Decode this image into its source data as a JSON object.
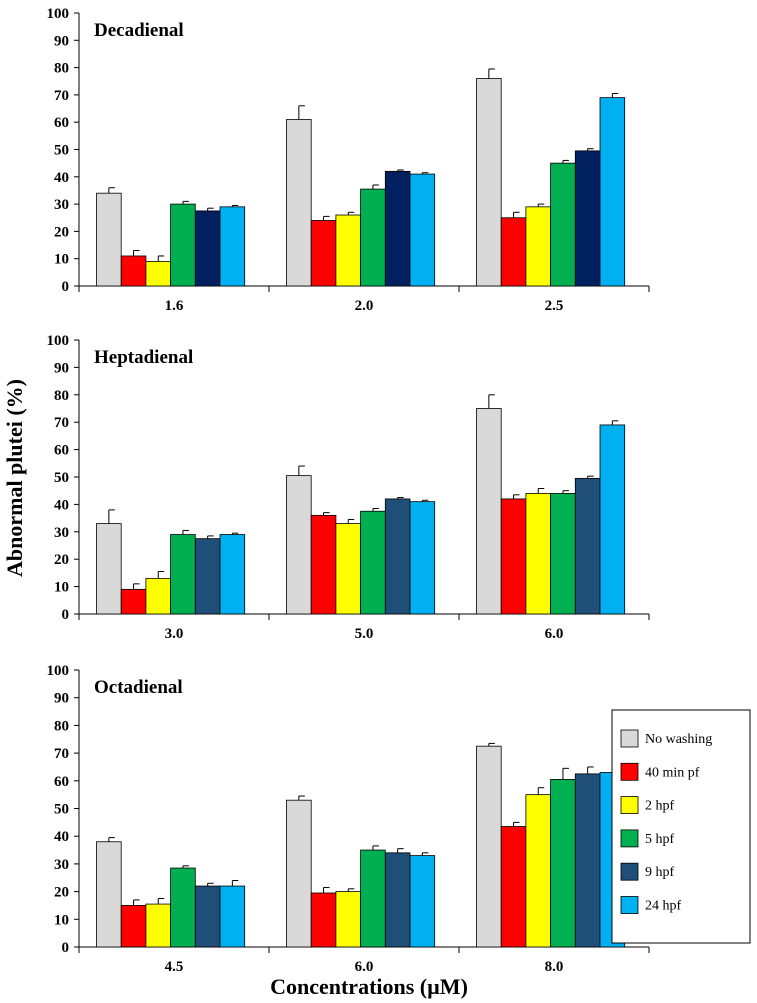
{
  "chart_data": [
    {
      "type": "bar",
      "title": "Decadienal",
      "categories": [
        "1.6",
        "2.0",
        "2.5"
      ],
      "ylim": [
        0,
        100
      ],
      "yticks": [
        0,
        10,
        20,
        30,
        40,
        50,
        60,
        70,
        80,
        90,
        100
      ],
      "series": [
        {
          "name": "No washing",
          "values": [
            34,
            61,
            76
          ],
          "errors": [
            2,
            5,
            3.5
          ]
        },
        {
          "name": "40 min pf",
          "values": [
            11,
            24,
            25
          ],
          "errors": [
            2,
            1.5,
            2
          ]
        },
        {
          "name": "2 hpf",
          "values": [
            9,
            26,
            29
          ],
          "errors": [
            2,
            1,
            1
          ]
        },
        {
          "name": "5 hpf",
          "values": [
            30,
            35.5,
            45
          ],
          "errors": [
            1,
            1.5,
            1
          ]
        },
        {
          "name": "9 hpf",
          "values": [
            27.5,
            42,
            49.5
          ],
          "errors": [
            1,
            0.5,
            0.8
          ]
        },
        {
          "name": "24 hpf",
          "values": [
            29,
            41,
            69
          ],
          "errors": [
            0.5,
            0.5,
            1.5
          ]
        }
      ]
    },
    {
      "type": "bar",
      "title": "Heptadienal",
      "categories": [
        "3.0",
        "5.0",
        "6.0"
      ],
      "ylim": [
        0,
        100
      ],
      "yticks": [
        0,
        10,
        20,
        30,
        40,
        50,
        60,
        70,
        80,
        90,
        100
      ],
      "series": [
        {
          "name": "No washing",
          "values": [
            33,
            50.5,
            75
          ],
          "errors": [
            5,
            3.5,
            5
          ]
        },
        {
          "name": "40 min pf",
          "values": [
            9,
            36,
            42
          ],
          "errors": [
            2,
            1,
            1.5
          ]
        },
        {
          "name": "2 hpf",
          "values": [
            13,
            33,
            44
          ],
          "errors": [
            2.5,
            1.5,
            1.8
          ]
        },
        {
          "name": "5 hpf",
          "values": [
            29,
            37.5,
            44
          ],
          "errors": [
            1.5,
            1,
            1
          ]
        },
        {
          "name": "9 hpf",
          "values": [
            27.5,
            42,
            49.5
          ],
          "errors": [
            1,
            0.5,
            0.8
          ]
        },
        {
          "name": "24 hpf",
          "values": [
            29,
            41,
            69
          ],
          "errors": [
            0.5,
            0.5,
            1.5
          ]
        }
      ]
    },
    {
      "type": "bar",
      "title": "Octadienal",
      "categories": [
        "4.5",
        "6.0",
        "8.0"
      ],
      "ylim": [
        0,
        100
      ],
      "yticks": [
        0,
        10,
        20,
        30,
        40,
        50,
        60,
        70,
        80,
        90,
        100
      ],
      "series": [
        {
          "name": "No washing",
          "values": [
            38,
            53,
            72.5
          ],
          "errors": [
            1.5,
            1.5,
            1
          ]
        },
        {
          "name": "40 min pf",
          "values": [
            15,
            19.5,
            43.5
          ],
          "errors": [
            2,
            2,
            1.5
          ]
        },
        {
          "name": "2 hpf",
          "values": [
            15.5,
            20,
            55
          ],
          "errors": [
            2,
            1,
            2.5
          ]
        },
        {
          "name": "5 hpf",
          "values": [
            28.5,
            35,
            60.5
          ],
          "errors": [
            0.8,
            1.5,
            4
          ]
        },
        {
          "name": "9 hpf",
          "values": [
            22,
            34,
            62.5
          ],
          "errors": [
            1,
            1.5,
            2.5
          ]
        },
        {
          "name": "24 hpf",
          "values": [
            22,
            33,
            63
          ],
          "errors": [
            2,
            1,
            1
          ]
        }
      ]
    }
  ],
  "ylabel": "Abnormal plutei (%)",
  "xlabel": "Concentrations (µM)",
  "legend": {
    "placement": "bottom-right",
    "items": [
      {
        "label": "No washing",
        "color": "#d9d9d9"
      },
      {
        "label": "40 min pf",
        "color": "#ff0000"
      },
      {
        "label": "2 hpf",
        "color": "#ffff00"
      },
      {
        "label": "5 hpf",
        "color": "#00b050"
      },
      {
        "label": "9 hpf",
        "color": "#1f4e79"
      },
      {
        "label": "24 hpf",
        "color": "#00b0f0"
      }
    ]
  },
  "panel_series_colors": [
    [
      "#d9d9d9",
      "#ff0000",
      "#ffff00",
      "#00b050",
      "#002060",
      "#00b0f0"
    ],
    [
      "#d9d9d9",
      "#ff0000",
      "#ffff00",
      "#00b050",
      "#1f4e79",
      "#00b0f0"
    ],
    [
      "#d9d9d9",
      "#ff0000",
      "#ffff00",
      "#00b050",
      "#1f4e79",
      "#00b0f0"
    ]
  ]
}
